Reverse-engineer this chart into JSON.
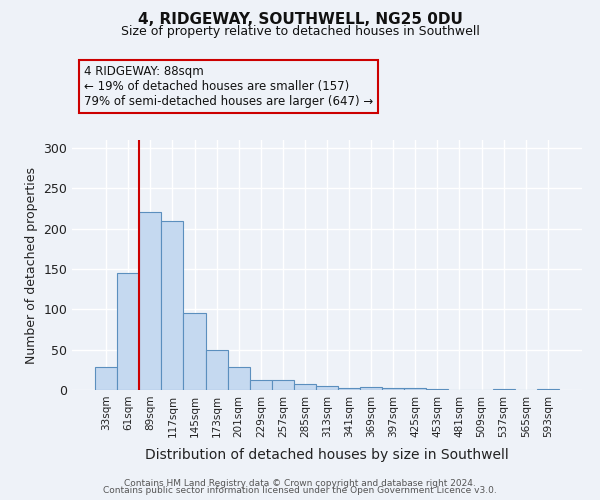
{
  "title": "4, RIDGEWAY, SOUTHWELL, NG25 0DU",
  "subtitle": "Size of property relative to detached houses in Southwell",
  "xlabel": "Distribution of detached houses by size in Southwell",
  "ylabel": "Number of detached properties",
  "bar_labels": [
    "33sqm",
    "61sqm",
    "89sqm",
    "117sqm",
    "145sqm",
    "173sqm",
    "201sqm",
    "229sqm",
    "257sqm",
    "285sqm",
    "313sqm",
    "341sqm",
    "369sqm",
    "397sqm",
    "425sqm",
    "453sqm",
    "481sqm",
    "509sqm",
    "537sqm",
    "565sqm",
    "593sqm"
  ],
  "bar_values": [
    28,
    145,
    221,
    210,
    95,
    50,
    28,
    12,
    12,
    8,
    5,
    2,
    4,
    3,
    3,
    1,
    0,
    0,
    1,
    0,
    1
  ],
  "bar_color": "#c5d9f0",
  "bar_edge_color": "#5b8fbe",
  "vline_color": "#cc0000",
  "ylim": [
    0,
    310
  ],
  "yticks": [
    0,
    50,
    100,
    150,
    200,
    250,
    300
  ],
  "annotation_line1": "4 RIDGEWAY: 88sqm",
  "annotation_line2": "← 19% of detached houses are smaller (157)",
  "annotation_line3": "79% of semi-detached houses are larger (647) →",
  "annotation_box_edgecolor": "#cc0000",
  "footer_line1": "Contains HM Land Registry data © Crown copyright and database right 2024.",
  "footer_line2": "Contains public sector information licensed under the Open Government Licence v3.0.",
  "background_color": "#eef2f8"
}
